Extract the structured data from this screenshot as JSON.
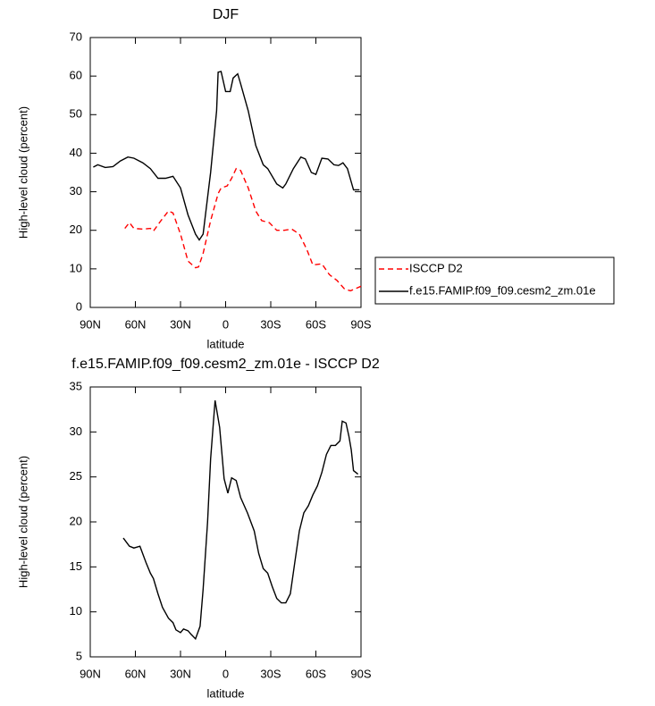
{
  "chart_data": [
    {
      "type": "line",
      "title": "DJF",
      "xlabel": "latitude",
      "ylabel": "High-level cloud (percent)",
      "xlim": [
        90,
        -90
      ],
      "ylim": [
        0,
        70
      ],
      "xticks": [
        {
          "value": 90,
          "label": "90N"
        },
        {
          "value": 60,
          "label": "60N"
        },
        {
          "value": 30,
          "label": "30N"
        },
        0,
        {
          "value": -30,
          "label": "30S"
        },
        {
          "value": -60,
          "label": "60S"
        },
        {
          "value": -90,
          "label": "90S"
        }
      ],
      "yticks": [
        0,
        10,
        20,
        30,
        40,
        50,
        60,
        70
      ],
      "series": [
        {
          "name": "ISCCP D2",
          "color": "#ff0000",
          "dash": true,
          "x": [
            67,
            64,
            61,
            55,
            50,
            48,
            43,
            38,
            35,
            30,
            25,
            20,
            18,
            15,
            10,
            5,
            3,
            -1,
            -4,
            -7,
            -10,
            -15,
            -20,
            -24,
            -29,
            -34,
            -39,
            -44,
            -49,
            -54,
            -58,
            -64,
            -69,
            -74,
            -79,
            -83,
            -90
          ],
          "values": [
            20.5,
            22,
            20.5,
            20.3,
            20.5,
            19.8,
            22.5,
            25,
            24.5,
            19,
            12,
            10.3,
            10.5,
            14,
            22.5,
            29.5,
            31,
            31.5,
            33.5,
            36,
            35.5,
            31,
            25,
            22.5,
            22,
            20,
            20,
            20.3,
            19,
            15,
            11,
            11.3,
            8.5,
            7,
            4.8,
            4.3,
            5.5
          ]
        },
        {
          "name": "f.e15.FAMIP.f09_f09.cesm2_zm.01e",
          "color": "#000000",
          "dash": false,
          "x": [
            88,
            85,
            80,
            75,
            70,
            65,
            61,
            55,
            50,
            45,
            40,
            35,
            30,
            25,
            20,
            17.5,
            15,
            10,
            6,
            5,
            3,
            0,
            -3,
            -5,
            -8,
            -10,
            -15,
            -20,
            -25,
            -28,
            -34,
            -38,
            -40,
            -45,
            -50,
            -53,
            -57,
            -60,
            -64,
            -68,
            -72,
            -75,
            -78,
            -81,
            -85,
            -89
          ],
          "values": [
            36.4,
            37,
            36.3,
            36.5,
            38,
            39,
            38.7,
            37.5,
            36,
            33.5,
            33.5,
            34,
            31,
            24,
            19,
            17.5,
            19,
            35,
            51,
            61,
            61.2,
            56,
            56,
            59.5,
            60.6,
            58,
            51,
            42,
            37,
            36,
            32,
            31,
            32,
            36,
            39,
            38.5,
            35,
            34.5,
            38.7,
            38.5,
            37,
            36.8,
            37.5,
            36,
            30.5,
            30.5
          ]
        }
      ]
    },
    {
      "type": "line",
      "title": "f.e15.FAMIP.f09_f09.cesm2_zm.01e - ISCCP D2",
      "xlabel": "latitude",
      "ylabel": "High-level cloud (percent)",
      "xlim": [
        90,
        -90
      ],
      "ylim": [
        5,
        35
      ],
      "xticks": [
        {
          "value": 90,
          "label": "90N"
        },
        {
          "value": 60,
          "label": "60N"
        },
        {
          "value": 30,
          "label": "30N"
        },
        0,
        {
          "value": -30,
          "label": "30S"
        },
        {
          "value": -60,
          "label": "60S"
        },
        {
          "value": -90,
          "label": "90S"
        }
      ],
      "yticks": [
        5,
        10,
        15,
        20,
        25,
        30,
        35
      ],
      "color": "#000000",
      "x": [
        68,
        64,
        61,
        57,
        53,
        50,
        48,
        45,
        42,
        38,
        35,
        33,
        30,
        28,
        25,
        23,
        20,
        17,
        15,
        12,
        10,
        7,
        4,
        1,
        -1.5,
        -4,
        -7,
        -10,
        -14.5,
        -19,
        -22,
        -25,
        -28,
        -31,
        -34,
        -37,
        -40,
        -43,
        -46,
        -49,
        -52,
        -55,
        -58,
        -61,
        -64,
        -67,
        -70,
        -73,
        -76,
        -77.5,
        -80,
        -82,
        -83.5,
        -85,
        -88
      ],
      "values": [
        18.2,
        17.3,
        17.1,
        17.3,
        15.5,
        14.3,
        13.7,
        12,
        10.5,
        9.3,
        8.8,
        8,
        7.7,
        8.1,
        7.9,
        7.5,
        7,
        8.4,
        12.5,
        20,
        27,
        33.5,
        30.5,
        24.8,
        23.2,
        24.9,
        24.6,
        22.7,
        21,
        19,
        16.5,
        14.8,
        14.3,
        12.8,
        11.5,
        11,
        11,
        12,
        15.5,
        19,
        21,
        21.8,
        23,
        24,
        25.5,
        27.5,
        28.5,
        28.5,
        29,
        31.2,
        31,
        29.5,
        28,
        25.7,
        25.3
      ]
    }
  ]
}
